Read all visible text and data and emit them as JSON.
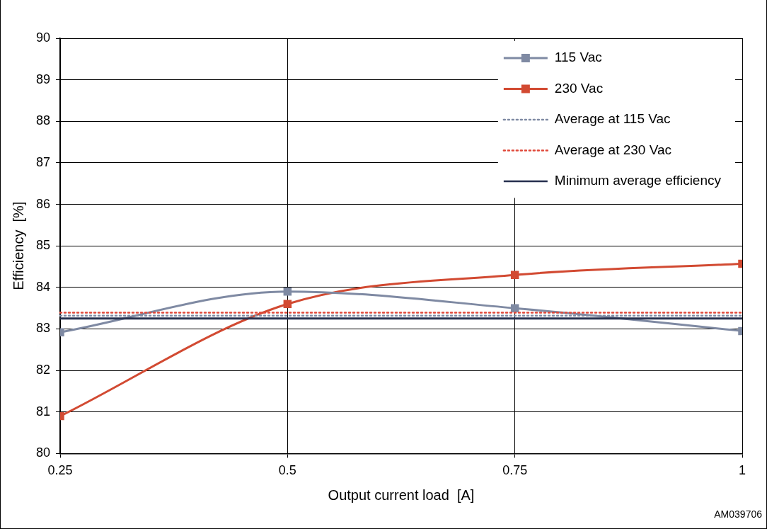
{
  "chart_data": {
    "type": "line",
    "xlabel": "Output current load  [A]",
    "ylabel": "Efficiency  [%]",
    "x": [
      0.25,
      0.5,
      0.75,
      1
    ],
    "series": [
      {
        "name": "115 Vac",
        "color": "#7f8aa3",
        "values": [
          82.92,
          83.9,
          83.5,
          82.95
        ]
      },
      {
        "name": "230 Vac",
        "color": "#d24a32",
        "values": [
          80.9,
          83.6,
          84.3,
          84.57
        ]
      }
    ],
    "ref_lines": [
      {
        "axis": "y",
        "value": 83.32,
        "label": "Average at 115 Vac",
        "color": "#7f8aa3",
        "line_style": "dotted"
      },
      {
        "axis": "y",
        "value": 83.39,
        "label": "Average at 230 Vac",
        "color": "#e0483a",
        "line_style": "dotted"
      },
      {
        "axis": "y",
        "value": 83.25,
        "label": "Minimum average efficiency",
        "color": "#26304f",
        "line_style": "solid"
      }
    ],
    "xlim": [
      0.25,
      1
    ],
    "xticks": [
      0.25,
      0.5,
      0.75,
      1
    ],
    "ylim": [
      80,
      90
    ],
    "yticks": [
      80,
      81,
      82,
      83,
      84,
      85,
      86,
      87,
      88,
      89,
      90
    ],
    "grid": true,
    "legend": "top right",
    "marker": "square",
    "line_style": "solid",
    "annotations": [
      "AM039706"
    ]
  }
}
